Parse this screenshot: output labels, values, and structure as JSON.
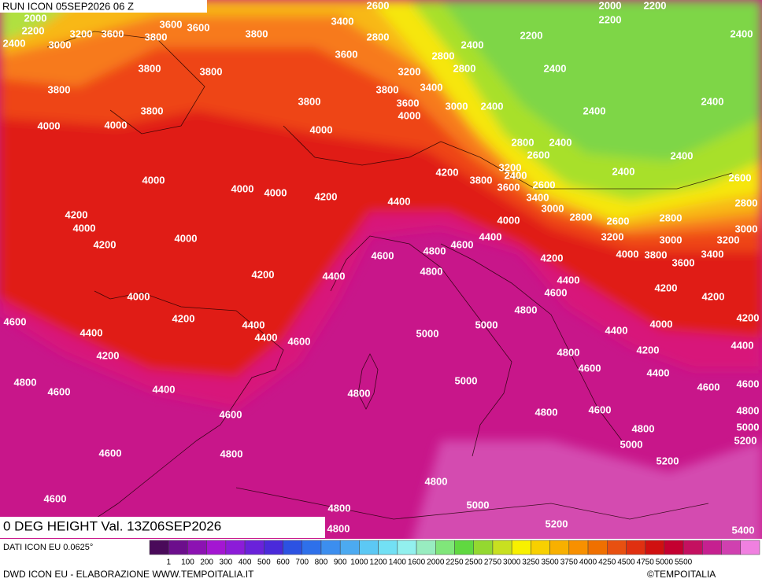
{
  "header": {
    "run": "RUN ICON 05SEP2026 06 Z",
    "field": "0 DEG HEIGHT Val. 13Z06SEP2026"
  },
  "footer": {
    "source": "DATI ICON EU 0.0625°",
    "credits": "DWD ICON EU - ELABORAZIONE WWW.TEMPOITALIA.IT",
    "copyright": "©TEMPOITALIA"
  },
  "legend": {
    "labels": [
      "1",
      "100",
      "200",
      "300",
      "400",
      "500",
      "600",
      "700",
      "800",
      "900",
      "1000",
      "1200",
      "1400",
      "1600",
      "2000",
      "2250",
      "2500",
      "2750",
      "3000",
      "3250",
      "3500",
      "3750",
      "4000",
      "4250",
      "4500",
      "4750",
      "5000",
      "5500"
    ],
    "colors": [
      "#4a0a5a",
      "#6c0e8c",
      "#8c12b2",
      "#a416d2",
      "#8c1cd8",
      "#6a22da",
      "#4a2ada",
      "#2c52e2",
      "#2e70ea",
      "#3c8eef",
      "#4caaf1",
      "#5cc8f4",
      "#72e0f4",
      "#92f0ee",
      "#98ecc0",
      "#80e67a",
      "#60d840",
      "#94d830",
      "#c8e020",
      "#f8f000",
      "#f8d000",
      "#f8b000",
      "#f89000",
      "#f07000",
      "#e85010",
      "#e03010",
      "#d01010",
      "#c40030",
      "#c41060",
      "#c62090",
      "#d040b0",
      "#f080e0"
    ]
  },
  "contour_labels": [
    "3400",
    "2600",
    "2000",
    "2200",
    "2200",
    "2000",
    "3200",
    "3600",
    "3600",
    "3600",
    "3800",
    "3800",
    "2400",
    "3000",
    "2800",
    "2200",
    "2200",
    "2400",
    "3600",
    "2800",
    "2400",
    "3800",
    "3800",
    "3200",
    "2800",
    "2400",
    "3400",
    "3800",
    "3800",
    "3800",
    "3600",
    "3000",
    "2400",
    "2400",
    "2400",
    "3800",
    "4000",
    "4000",
    "4000",
    "4000",
    "2800",
    "2400",
    "2600",
    "2400",
    "3200",
    "4200",
    "3800",
    "2400",
    "2400",
    "4000",
    "3600",
    "2600",
    "2600",
    "4000",
    "4000",
    "4200",
    "3400",
    "4400",
    "3000",
    "2800",
    "4200",
    "2800",
    "2600",
    "2800",
    "4000",
    "4000",
    "3000",
    "3200",
    "3000",
    "3200",
    "4400",
    "4000",
    "4200",
    "4600",
    "4800",
    "4600",
    "4000",
    "3800",
    "3400",
    "4200",
    "3600",
    "4800",
    "4200",
    "4400",
    "4400",
    "4600",
    "4200",
    "4000",
    "4200",
    "4800",
    "4600",
    "4200",
    "4400",
    "5000",
    "4000",
    "4200",
    "4400",
    "4400",
    "4600",
    "5000",
    "4400",
    "4400",
    "4200",
    "4800",
    "4200",
    "4600",
    "4400",
    "4800",
    "4600",
    "4400",
    "5000",
    "4800",
    "4600",
    "4600",
    "4600",
    "4800",
    "4600",
    "4800",
    "4800",
    "5000",
    "5000",
    "5200",
    "4600",
    "4800",
    "5200",
    "4800",
    "4600",
    "4800",
    "5000",
    "5200",
    "4800",
    "5400"
  ]
}
